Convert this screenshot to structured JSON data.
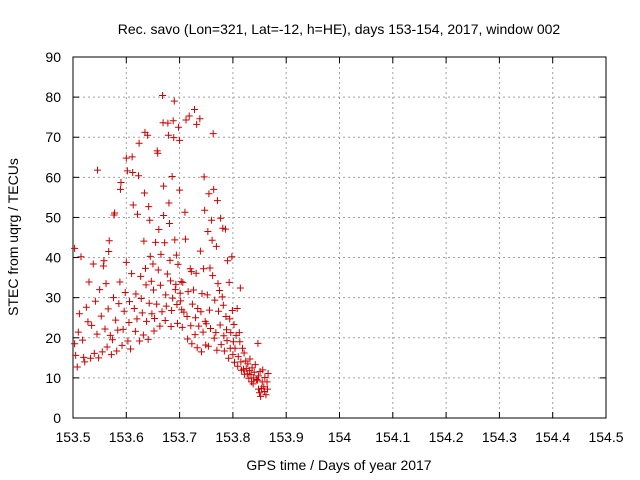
{
  "chart_data": {
    "type": "scatter",
    "title": "Rec. savo (Lon=321, Lat=-12, h=HE), days 153-154, 2017, window 002",
    "xlabel": "GPS time / Days of year 2017",
    "ylabel": "STEC from uqrg / TECUs",
    "xlim": [
      153.5,
      154.5
    ],
    "ylim": [
      0,
      90
    ],
    "xticks": [
      153.5,
      153.6,
      153.7,
      153.8,
      153.9,
      154.0,
      154.1,
      154.2,
      154.3,
      154.4,
      154.5
    ],
    "xtick_labels": [
      "153.5",
      "153.6",
      "153.7",
      "153.8",
      "153.9",
      "154",
      "154.1",
      "154.2",
      "154.3",
      "154.4",
      "154.5"
    ],
    "yticks": [
      0,
      10,
      20,
      30,
      40,
      50,
      60,
      70,
      80,
      90
    ],
    "ytick_labels": [
      "0",
      "10",
      "20",
      "30",
      "40",
      "50",
      "60",
      "70",
      "80",
      "90"
    ],
    "grid": true,
    "marker": "plus",
    "marker_color": "#cc0000",
    "series": [
      {
        "name": "STEC",
        "points": [
          [
            153.503,
            42.3
          ],
          [
            153.503,
            18.5
          ],
          [
            153.505,
            15.6
          ],
          [
            153.508,
            12.7
          ],
          [
            153.51,
            21.4
          ],
          [
            153.512,
            26.0
          ],
          [
            153.515,
            40.2
          ],
          [
            153.518,
            19.4
          ],
          [
            153.52,
            15.1
          ],
          [
            153.522,
            14.0
          ],
          [
            153.525,
            27.6
          ],
          [
            153.528,
            24.0
          ],
          [
            153.53,
            33.9
          ],
          [
            153.533,
            14.9
          ],
          [
            153.535,
            23.1
          ],
          [
            153.538,
            38.4
          ],
          [
            153.54,
            16.1
          ],
          [
            153.542,
            29.1
          ],
          [
            153.545,
            20.9
          ],
          [
            153.546,
            61.8
          ],
          [
            153.548,
            15.0
          ],
          [
            153.55,
            32.0
          ],
          [
            153.553,
            25.4
          ],
          [
            153.555,
            16.5
          ],
          [
            153.557,
            37.9
          ],
          [
            153.558,
            39.2
          ],
          [
            153.56,
            22.2
          ],
          [
            153.562,
            33.5
          ],
          [
            153.564,
            17.7
          ],
          [
            153.566,
            27.2
          ],
          [
            153.567,
            41.5
          ],
          [
            153.568,
            44.2
          ],
          [
            153.57,
            20.6
          ],
          [
            153.572,
            15.8
          ],
          [
            153.574,
            19.5
          ],
          [
            153.576,
            30.0
          ],
          [
            153.577,
            50.6
          ],
          [
            153.578,
            51.1
          ],
          [
            153.58,
            24.4
          ],
          [
            153.582,
            16.7
          ],
          [
            153.584,
            21.9
          ],
          [
            153.586,
            28.5
          ],
          [
            153.588,
            33.9
          ],
          [
            153.589,
            57.0
          ],
          [
            153.59,
            58.7
          ],
          [
            153.592,
            18.1
          ],
          [
            153.594,
            22.1
          ],
          [
            153.596,
            26.6
          ],
          [
            153.598,
            31.3
          ],
          [
            153.6,
            38.8
          ],
          [
            153.6,
            64.8
          ],
          [
            153.602,
            61.6
          ],
          [
            153.603,
            19.2
          ],
          [
            153.605,
            23.8
          ],
          [
            153.606,
            29.0
          ],
          [
            153.608,
            17.2
          ],
          [
            153.61,
            36.0
          ],
          [
            153.611,
            65.1
          ],
          [
            153.612,
            61.2
          ],
          [
            153.613,
            53.1
          ],
          [
            153.615,
            27.3
          ],
          [
            153.617,
            21.6
          ],
          [
            153.618,
            30.9
          ],
          [
            153.62,
            24.7
          ],
          [
            153.621,
            50.8
          ],
          [
            153.623,
            60.4
          ],
          [
            153.624,
            68.5
          ],
          [
            153.625,
            19.2
          ],
          [
            153.627,
            35.3
          ],
          [
            153.628,
            29.8
          ],
          [
            153.63,
            26.2
          ],
          [
            153.632,
            20.7
          ],
          [
            153.633,
            44.1
          ],
          [
            153.634,
            56.1
          ],
          [
            153.635,
            71.2
          ],
          [
            153.636,
            37.3
          ],
          [
            153.637,
            33.2
          ],
          [
            153.638,
            24.1
          ],
          [
            153.64,
            70.5
          ],
          [
            153.641,
            19.6
          ],
          [
            153.642,
            52.7
          ],
          [
            153.643,
            28.6
          ],
          [
            153.644,
            49.3
          ],
          [
            153.645,
            40.3
          ],
          [
            153.647,
            34.1
          ],
          [
            153.648,
            26.0
          ],
          [
            153.65,
            38.4
          ],
          [
            153.651,
            31.9
          ],
          [
            153.652,
            21.7
          ],
          [
            153.653,
            24.8
          ],
          [
            153.655,
            43.8
          ],
          [
            153.657,
            28.4
          ],
          [
            153.658,
            66.6
          ],
          [
            153.659,
            66.0
          ],
          [
            153.66,
            36.9
          ],
          [
            153.661,
            47.0
          ],
          [
            153.663,
            22.9
          ],
          [
            153.664,
            33.1
          ],
          [
            153.665,
            40.8
          ],
          [
            153.667,
            26.5
          ],
          [
            153.668,
            80.4
          ],
          [
            153.669,
            73.6
          ],
          [
            153.67,
            57.8
          ],
          [
            153.67,
            50.5
          ],
          [
            153.672,
            43.7
          ],
          [
            153.673,
            24.3
          ],
          [
            153.674,
            30.7
          ],
          [
            153.675,
            27.9
          ],
          [
            153.677,
            35.9
          ],
          [
            153.678,
            73.5
          ],
          [
            153.679,
            70.5
          ],
          [
            153.68,
            53.6
          ],
          [
            153.681,
            48.5
          ],
          [
            153.682,
            39.3
          ],
          [
            153.683,
            34.2
          ],
          [
            153.684,
            22.8
          ],
          [
            153.685,
            26.8
          ],
          [
            153.686,
            60.2
          ],
          [
            153.687,
            29.9
          ],
          [
            153.688,
            74.1
          ],
          [
            153.689,
            69.9
          ],
          [
            153.69,
            79.0
          ],
          [
            153.691,
            44.4
          ],
          [
            153.692,
            32.0
          ],
          [
            153.693,
            33.3
          ],
          [
            153.694,
            40.6
          ],
          [
            153.695,
            28.3
          ],
          [
            153.696,
            23.6
          ],
          [
            153.697,
            38.3
          ],
          [
            153.698,
            72.5
          ],
          [
            153.7,
            69.2
          ],
          [
            153.7,
            56.8
          ],
          [
            153.701,
            31.1
          ],
          [
            153.702,
            29.2
          ],
          [
            153.703,
            34.0
          ],
          [
            153.704,
            27.0
          ],
          [
            153.705,
            22.6
          ],
          [
            153.706,
            33.8
          ],
          [
            153.708,
            26.4
          ],
          [
            153.71,
            51.3
          ],
          [
            153.711,
            44.6
          ],
          [
            153.712,
            74.3
          ],
          [
            153.714,
            25.3
          ],
          [
            153.715,
            19.7
          ],
          [
            153.716,
            31.5
          ],
          [
            153.718,
            75.3
          ],
          [
            153.72,
            37.2
          ],
          [
            153.721,
            23.0
          ],
          [
            153.722,
            36.5
          ],
          [
            153.723,
            18.5
          ],
          [
            153.724,
            28.4
          ],
          [
            153.726,
            31.9
          ],
          [
            153.728,
            76.9
          ],
          [
            153.729,
            20.8
          ],
          [
            153.73,
            25.0
          ],
          [
            153.731,
            36.1
          ],
          [
            153.732,
            73.2
          ],
          [
            153.733,
            17.5
          ],
          [
            153.734,
            27.3
          ],
          [
            153.736,
            22.9
          ],
          [
            153.738,
            74.6
          ],
          [
            153.739,
            41.6
          ],
          [
            153.74,
            26.5
          ],
          [
            153.741,
            16.5
          ],
          [
            153.742,
            31.0
          ],
          [
            153.744,
            21.4
          ],
          [
            153.745,
            37.2
          ],
          [
            153.746,
            60.1
          ],
          [
            153.747,
            51.8
          ],
          [
            153.748,
            24.1
          ],
          [
            153.749,
            18.2
          ],
          [
            153.75,
            23.5
          ],
          [
            153.752,
            30.7
          ],
          [
            153.753,
            46.5
          ],
          [
            153.754,
            17.9
          ],
          [
            153.755,
            55.9
          ],
          [
            153.756,
            26.9
          ],
          [
            153.757,
            37.4
          ],
          [
            153.758,
            22.3
          ],
          [
            153.76,
            49.3
          ],
          [
            153.761,
            44.3
          ],
          [
            153.762,
            35.5
          ],
          [
            153.763,
            70.9
          ],
          [
            153.764,
            57.0
          ],
          [
            153.765,
            19.9
          ],
          [
            153.766,
            29.4
          ],
          [
            153.768,
            21.3
          ],
          [
            153.769,
            42.8
          ],
          [
            153.77,
            16.9
          ],
          [
            153.771,
            54.2
          ],
          [
            153.772,
            33.5
          ],
          [
            153.773,
            26.6
          ],
          [
            153.775,
            31.8
          ],
          [
            153.776,
            23.2
          ],
          [
            153.777,
            49.8
          ],
          [
            153.778,
            18.3
          ],
          [
            153.78,
            30.2
          ],
          [
            153.781,
            47.3
          ],
          [
            153.782,
            28.1
          ],
          [
            153.783,
            20.5
          ],
          [
            153.784,
            16.7
          ],
          [
            153.786,
            47.1
          ],
          [
            153.787,
            25.3
          ],
          [
            153.788,
            22.0
          ],
          [
            153.789,
            19.3
          ],
          [
            153.79,
            39.2
          ],
          [
            153.792,
            14.9
          ],
          [
            153.793,
            33.8
          ],
          [
            153.794,
            24.7
          ],
          [
            153.795,
            17.4
          ],
          [
            153.796,
            21.3
          ],
          [
            153.798,
            40.2
          ],
          [
            153.799,
            26.8
          ],
          [
            153.8,
            15.8
          ],
          [
            153.801,
            19.0
          ],
          [
            153.802,
            23.3
          ],
          [
            153.803,
            13.9
          ],
          [
            153.804,
            17.4
          ],
          [
            153.806,
            20.6
          ],
          [
            153.808,
            27.3
          ],
          [
            153.809,
            12.9
          ],
          [
            153.81,
            15.3
          ],
          [
            153.812,
            21.3
          ],
          [
            153.813,
            19.0
          ],
          [
            153.814,
            32.4
          ],
          [
            153.815,
            14.0
          ],
          [
            153.816,
            11.9
          ],
          [
            153.818,
            17.4
          ],
          [
            153.82,
            12.2
          ],
          [
            153.821,
            16.2
          ],
          [
            153.822,
            10.9
          ],
          [
            153.824,
            14.2
          ],
          [
            153.825,
            12.3
          ],
          [
            153.827,
            11.0
          ],
          [
            153.828,
            13.5
          ],
          [
            153.83,
            9.9
          ],
          [
            153.831,
            11.8
          ],
          [
            153.832,
            14.7
          ],
          [
            153.834,
            10.8
          ],
          [
            153.835,
            9.0
          ],
          [
            153.836,
            12.5
          ],
          [
            153.838,
            8.5
          ],
          [
            153.839,
            10.0
          ],
          [
            153.84,
            11.4
          ],
          [
            153.842,
            13.3
          ],
          [
            153.844,
            9.6
          ],
          [
            153.846,
            9.4
          ],
          [
            153.847,
            18.6
          ],
          [
            153.848,
            10.5
          ],
          [
            153.848,
            7.2
          ],
          [
            153.85,
            6.3
          ],
          [
            153.851,
            11.6
          ],
          [
            153.852,
            5.4
          ],
          [
            153.854,
            7.4
          ],
          [
            153.855,
            9.0
          ],
          [
            153.856,
            12.0
          ],
          [
            153.858,
            7.8
          ],
          [
            153.859,
            6.6
          ],
          [
            153.86,
            10.1
          ],
          [
            153.862,
            5.8
          ],
          [
            153.864,
            9.0
          ],
          [
            153.865,
            7.2
          ],
          [
            153.866,
            11.1
          ]
        ]
      }
    ]
  }
}
